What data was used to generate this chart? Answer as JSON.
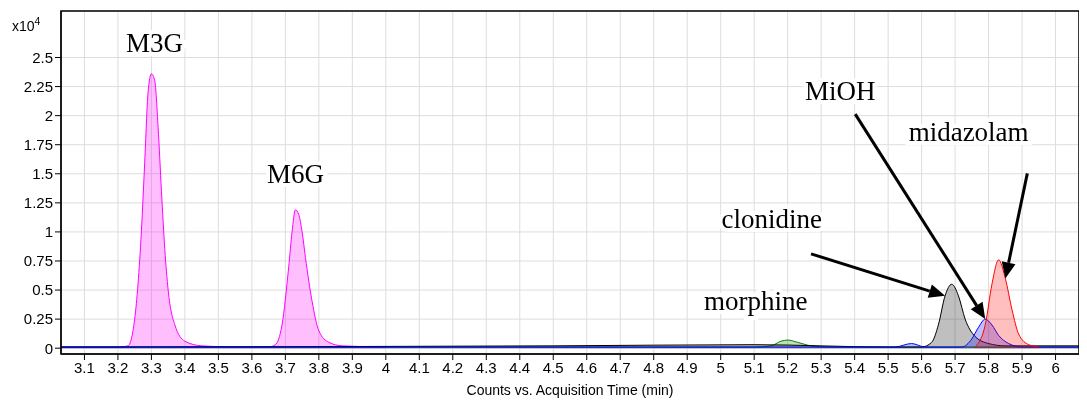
{
  "chart_data": {
    "type": "area",
    "xlabel": "Counts vs. Acquisition Time (min)",
    "ylabel": "x10$^{4}$",
    "xlim": [
      3.03,
      6.07
    ],
    "xticks": [
      3.1,
      3.2,
      3.3,
      3.4,
      3.5,
      3.6,
      3.7,
      3.8,
      3.9,
      4,
      4.1,
      4.2,
      4.3,
      4.4,
      4.5,
      4.6,
      4.7,
      4.8,
      4.9,
      5,
      5.1,
      5.2,
      5.3,
      5.4,
      5.5,
      5.6,
      5.7,
      5.8,
      5.9,
      6
    ],
    "ylim": [
      -0.05,
      2.9
    ],
    "yticks": [
      0,
      0.25,
      0.5,
      0.75,
      1,
      1.25,
      1.5,
      1.75,
      2,
      2.25,
      2.5
    ],
    "grid": true,
    "legend": false,
    "series": [
      {
        "color": "#ff00ff",
        "x": [
          3.03,
          3.2,
          3.23,
          3.25,
          3.27,
          3.28,
          3.29,
          3.3,
          3.31,
          3.32,
          3.33,
          3.34,
          3.35,
          3.37,
          3.4,
          3.45,
          3.55
        ],
        "values": [
          0.01,
          0.01,
          0.02,
          0.25,
          1.0,
          1.6,
          2.2,
          2.36,
          2.3,
          1.9,
          1.35,
          0.85,
          0.5,
          0.2,
          0.06,
          0.02,
          0.01
        ]
      },
      {
        "color": "#ff00ff",
        "x": [
          3.55,
          3.65,
          3.67,
          3.69,
          3.71,
          3.72,
          3.73,
          3.74,
          3.75,
          3.76,
          3.78,
          3.8,
          3.83,
          3.87,
          4.0
        ],
        "values": [
          0.01,
          0.01,
          0.03,
          0.2,
          0.7,
          1.0,
          1.19,
          1.15,
          1.0,
          0.78,
          0.4,
          0.15,
          0.05,
          0.02,
          0.01
        ]
      },
      {
        "color": "#008000",
        "x": [
          3.03,
          5.1,
          5.15,
          5.18,
          5.2,
          5.23,
          5.27,
          5.32,
          6.07
        ],
        "values": [
          0.01,
          0.01,
          0.02,
          0.06,
          0.07,
          0.05,
          0.02,
          0.01,
          0.01
        ]
      },
      {
        "color": "#000000",
        "x": [
          3.03,
          4.5,
          5.1,
          5.5,
          5.6,
          5.63,
          5.65,
          5.67,
          5.69,
          5.71,
          5.73,
          5.76,
          5.8,
          5.85,
          6.07
        ],
        "values": [
          0.01,
          0.02,
          0.03,
          0.01,
          0.01,
          0.05,
          0.2,
          0.45,
          0.55,
          0.45,
          0.25,
          0.1,
          0.04,
          0.02,
          0.02
        ]
      },
      {
        "color": "#0000ff",
        "x": [
          3.03,
          5.52,
          5.57,
          5.61,
          5.72,
          5.75,
          5.77,
          5.79,
          5.81,
          5.83,
          5.86,
          5.9,
          6.07
        ],
        "values": [
          0.01,
          0.01,
          0.04,
          0.01,
          0.01,
          0.08,
          0.18,
          0.25,
          0.2,
          0.11,
          0.04,
          0.01,
          0.01
        ]
      },
      {
        "color": "#ff0000",
        "x": [
          5.76,
          5.79,
          5.81,
          5.83,
          5.85,
          5.87,
          5.89,
          5.92,
          5.95
        ],
        "values": [
          0.01,
          0.2,
          0.55,
          0.76,
          0.6,
          0.33,
          0.12,
          0.03,
          0.01
        ]
      }
    ],
    "annotations": [
      "M3G",
      "M6G",
      "morphine",
      "clonidine",
      "MiOH",
      "midazolam"
    ]
  }
}
